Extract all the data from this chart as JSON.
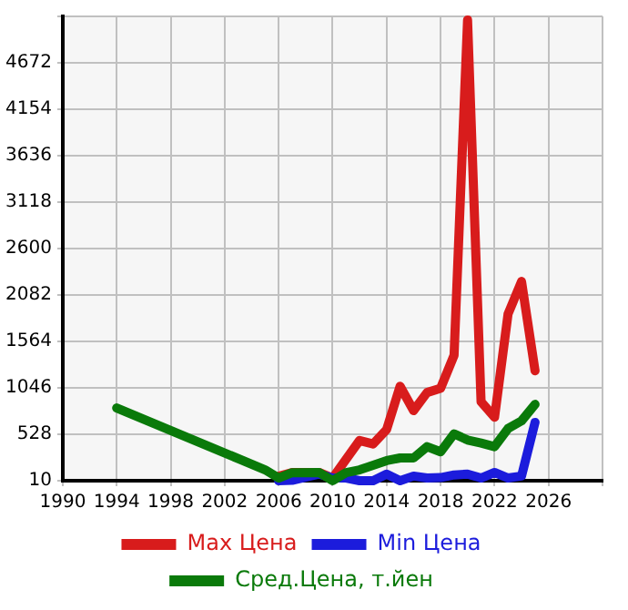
{
  "chart_data": {
    "type": "line",
    "xlim": [
      1990,
      2030
    ],
    "xticks": [
      1990,
      1994,
      1998,
      2002,
      2006,
      2010,
      2014,
      2018,
      2022,
      2026,
      {
        "value": 2030,
        "label": null
      }
    ],
    "ylim": [
      10,
      5190
    ],
    "yticks": [
      10,
      528,
      1046,
      1564,
      2082,
      2600,
      3118,
      3636,
      4154,
      4672,
      {
        "value": 5190,
        "label": null
      }
    ],
    "grid": true,
    "legend": "bottom",
    "marker": "none",
    "line_style": "solid",
    "series": [
      {
        "name": "Max Цена",
        "color": "#d81c1c",
        "x": [
          2006,
          2007,
          2009,
          2010,
          2012,
          2013,
          2014,
          2015,
          2016,
          2017,
          2018,
          2019,
          2020,
          2021,
          2022,
          2023,
          2024,
          2025
        ],
        "values": [
          60,
          102,
          102,
          40,
          459,
          420,
          580,
          1064,
          792,
          994,
          1041,
          1409,
          5150,
          891,
          718,
          1870,
          2233,
          1236
        ]
      },
      {
        "name": "Min Цена",
        "color": "#1c1cdc",
        "x": [
          2006,
          2007,
          2009,
          2010,
          2011,
          2012,
          2013,
          2014,
          2015,
          2016,
          2017,
          2018,
          2019,
          2020,
          2021,
          2022,
          2023,
          2024,
          2025
        ],
        "values": [
          10,
          15,
          84,
          40,
          40,
          10,
          10,
          84,
          10,
          62,
          40,
          45,
          74,
          84,
          40,
          102,
          40,
          62,
          661
        ]
      },
      {
        "name": "Сред.Цена, т.йен",
        "color": "#0a7a0a",
        "x": [
          1994,
          2005,
          2006,
          2007,
          2009,
          2010,
          2011,
          2012,
          2014,
          2015,
          2016,
          2017,
          2018,
          2019,
          2020,
          2021,
          2022,
          2023,
          2024,
          2025
        ],
        "values": [
          822,
          131,
          40,
          100,
          102,
          10,
          100,
          131,
          234,
          264,
          264,
          390,
          333,
          533,
          464,
          430,
          390,
          592,
          678,
          862
        ]
      }
    ]
  }
}
